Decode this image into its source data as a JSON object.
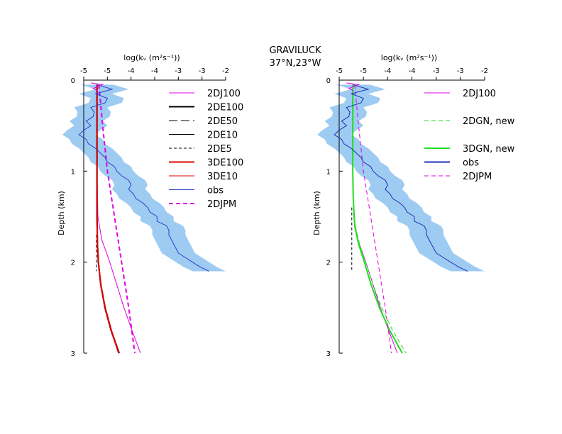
{
  "title_line1": "GRAVILUCK",
  "title_line2": "37°N,23°W",
  "chart_data": [
    {
      "type": "line",
      "panel": "left",
      "xlabel": "log(kᵥ (m²s⁻¹))",
      "ylabel": "Depth (km)",
      "xlim": [
        -5.0,
        -2.0
      ],
      "ylim": [
        3,
        0
      ],
      "xticks": [
        -5,
        -4.5,
        -4,
        -3.5,
        -3,
        -2.5,
        -2
      ],
      "xtick_labels": [
        "-5",
        "-5",
        "-4",
        "-4",
        "-3",
        "-3",
        "-2"
      ],
      "yticks": [
        0,
        1,
        2,
        3
      ],
      "ytick_labels": [
        "0",
        "1",
        "2",
        "3"
      ],
      "legend": [
        {
          "label": "2DJ100",
          "color": "#e000e0",
          "dash": "solid",
          "width": 1
        },
        {
          "label": "2DE100",
          "color": "#000000",
          "dash": "solid",
          "width": 2
        },
        {
          "label": "2DE50",
          "color": "#000000",
          "dash": "long-dash",
          "width": 1
        },
        {
          "label": "2DE10",
          "color": "#000000",
          "dash": "solid",
          "width": 1
        },
        {
          "label": "2DE5",
          "color": "#000000",
          "dash": "short-dash",
          "width": 1
        },
        {
          "label": "3DE100",
          "color": "#dd0000",
          "dash": "solid",
          "width": 2
        },
        {
          "label": "3DE10",
          "color": "#dd0000",
          "dash": "solid",
          "width": 1
        },
        {
          "label": "obs",
          "color": "#2a3ecc",
          "dash": "solid",
          "width": 1
        },
        {
          "label": "2DJPM",
          "color": "#e000e0",
          "dash": "dash",
          "width": 2
        }
      ],
      "obs_profile": {
        "depth": [
          0.05,
          0.1,
          0.15,
          0.2,
          0.25,
          0.3,
          0.35,
          0.4,
          0.45,
          0.5,
          0.55,
          0.6,
          0.65,
          0.7,
          0.75,
          0.8,
          0.85,
          0.9,
          0.95,
          1.0,
          1.05,
          1.1,
          1.15,
          1.2,
          1.25,
          1.3,
          1.35,
          1.4,
          1.45,
          1.5,
          1.55,
          1.6,
          1.65,
          1.7,
          1.75,
          1.8,
          1.85,
          1.9,
          1.95,
          2.0,
          2.05,
          2.1
        ],
        "value": [
          -4.72,
          -4.4,
          -4.75,
          -4.5,
          -4.55,
          -4.85,
          -4.78,
          -4.8,
          -4.95,
          -4.85,
          -5.0,
          -5.1,
          -4.95,
          -4.9,
          -4.75,
          -4.65,
          -4.55,
          -4.5,
          -4.35,
          -4.3,
          -4.2,
          -4.05,
          -4.0,
          -4.05,
          -3.95,
          -3.9,
          -3.75,
          -3.65,
          -3.6,
          -3.45,
          -3.45,
          -3.25,
          -3.2,
          -3.2,
          -3.15,
          -3.1,
          -3.05,
          -3.0,
          -2.85,
          -2.7,
          -2.55,
          -2.35
        ],
        "band_halfwidth": 0.35
      },
      "series": [
        {
          "name": "2DJ100",
          "depth": [
            0.05,
            0.5,
            1.0,
            1.5,
            1.75,
            2.0,
            2.25,
            2.5,
            2.75,
            3.0
          ],
          "value": [
            -4.72,
            -4.72,
            -4.72,
            -4.7,
            -4.62,
            -4.45,
            -4.3,
            -4.15,
            -3.98,
            -3.8
          ]
        },
        {
          "name": "2DE100",
          "depth": [
            0.05,
            0.5,
            1.0,
            1.5,
            1.8,
            2.0,
            2.25,
            2.5,
            2.75,
            3.0
          ],
          "value": [
            -4.72,
            -4.72,
            -4.72,
            -4.72,
            -4.71,
            -4.69,
            -4.64,
            -4.55,
            -4.42,
            -4.25
          ]
        },
        {
          "name": "2DE50",
          "depth": [
            0.05,
            0.5,
            1.0,
            1.5,
            1.8,
            2.0,
            2.25,
            2.5,
            2.75,
            3.0
          ],
          "value": [
            -4.72,
            -4.72,
            -4.72,
            -4.72,
            -4.71,
            -4.69,
            -4.63,
            -4.54,
            -4.41,
            -4.25
          ]
        },
        {
          "name": "2DE10",
          "depth": [
            0.05,
            0.5,
            1.0,
            1.5,
            1.8,
            2.0,
            2.25,
            2.5,
            2.75,
            3.0
          ],
          "value": [
            -4.72,
            -4.72,
            -4.72,
            -4.72,
            -4.71,
            -4.7,
            -4.64,
            -4.56,
            -4.43,
            -4.26
          ]
        },
        {
          "name": "2DE5",
          "depth": [
            1.7,
            1.8,
            1.9,
            2.0,
            2.1
          ],
          "value": [
            -4.73,
            -4.73,
            -4.73,
            -4.73,
            -4.73
          ]
        },
        {
          "name": "3DE100",
          "depth": [
            0.05,
            0.5,
            1.0,
            1.5,
            1.8,
            2.0,
            2.25,
            2.5,
            2.75,
            3.0
          ],
          "value": [
            -4.72,
            -4.72,
            -4.72,
            -4.72,
            -4.71,
            -4.69,
            -4.64,
            -4.55,
            -4.42,
            -4.26
          ]
        },
        {
          "name": "3DE10",
          "depth": [
            0.05,
            0.5,
            1.0,
            1.5,
            1.8,
            2.0,
            2.25,
            2.5,
            2.75,
            3.0
          ],
          "value": [
            -4.72,
            -4.72,
            -4.72,
            -4.72,
            -4.71,
            -4.69,
            -4.63,
            -4.54,
            -4.41,
            -4.25
          ]
        },
        {
          "name": "2DJPM",
          "depth": [
            0.05,
            0.5,
            1.0,
            1.5,
            2.0,
            2.5,
            3.0
          ],
          "value": [
            -4.68,
            -4.6,
            -4.5,
            -4.35,
            -4.2,
            -4.05,
            -3.92
          ]
        }
      ]
    },
    {
      "type": "line",
      "panel": "right",
      "xlabel": "log(kᵥ (m²s⁻¹))",
      "ylabel": "Depth (km)",
      "xlim": [
        -5.0,
        -2.0
      ],
      "ylim": [
        3,
        0
      ],
      "xticks": [
        -5,
        -4.5,
        -4,
        -3.5,
        -3,
        -2.5,
        -2
      ],
      "xtick_labels": [
        "-5",
        "-5",
        "-4",
        "-4",
        "-3",
        "-3",
        "-2"
      ],
      "yticks": [
        0,
        1,
        2,
        3
      ],
      "ytick_labels": [
        "0",
        "1",
        "2",
        "3"
      ],
      "legend": [
        {
          "label": "2DJ100",
          "color": "#e000e0",
          "dash": "solid",
          "width": 1
        },
        {
          "label": "",
          "color": "none",
          "dash": "solid",
          "width": 0
        },
        {
          "label": "2DGN, new",
          "color": "#22dd22",
          "dash": "dash",
          "width": 1
        },
        {
          "label": "",
          "color": "none",
          "dash": "solid",
          "width": 0
        },
        {
          "label": "3DGN, new",
          "color": "#22dd22",
          "dash": "solid",
          "width": 2
        },
        {
          "label": "obs",
          "color": "#1b2fb8",
          "dash": "solid",
          "width": 2
        },
        {
          "label": "2DJPM",
          "color": "#e000e0",
          "dash": "dash",
          "width": 1
        }
      ],
      "obs_profile": {
        "depth": [
          0.05,
          0.1,
          0.15,
          0.2,
          0.25,
          0.3,
          0.35,
          0.4,
          0.45,
          0.5,
          0.55,
          0.6,
          0.65,
          0.7,
          0.75,
          0.8,
          0.85,
          0.9,
          0.95,
          1.0,
          1.05,
          1.1,
          1.15,
          1.2,
          1.25,
          1.3,
          1.35,
          1.4,
          1.45,
          1.5,
          1.55,
          1.6,
          1.65,
          1.7,
          1.75,
          1.8,
          1.85,
          1.9,
          1.95,
          2.0,
          2.05,
          2.1
        ],
        "value": [
          -4.72,
          -4.4,
          -4.75,
          -4.5,
          -4.55,
          -4.85,
          -4.78,
          -4.8,
          -4.95,
          -4.85,
          -5.0,
          -5.1,
          -4.95,
          -4.9,
          -4.75,
          -4.65,
          -4.55,
          -4.5,
          -4.35,
          -4.3,
          -4.2,
          -4.05,
          -4.0,
          -4.05,
          -3.95,
          -3.9,
          -3.75,
          -3.65,
          -3.6,
          -3.45,
          -3.45,
          -3.25,
          -3.2,
          -3.2,
          -3.15,
          -3.1,
          -3.05,
          -3.0,
          -2.85,
          -2.7,
          -2.55,
          -2.35
        ],
        "band_halfwidth": 0.35
      },
      "series": [
        {
          "name": "2DJ100",
          "depth": [
            0.05,
            0.5,
            1.0,
            1.5,
            1.75,
            2.0,
            2.25,
            2.5,
            2.75,
            3.0
          ],
          "value": [
            -4.72,
            -4.72,
            -4.72,
            -4.7,
            -4.62,
            -4.45,
            -4.3,
            -4.15,
            -3.98,
            -3.8
          ]
        },
        {
          "name": "2DGN, new",
          "depth": [
            0.05,
            0.5,
            1.0,
            1.3,
            1.6,
            1.8,
            2.0,
            2.25,
            2.5,
            2.75,
            3.0
          ],
          "value": [
            -4.72,
            -4.72,
            -4.72,
            -4.71,
            -4.67,
            -4.58,
            -4.45,
            -4.3,
            -4.12,
            -3.9,
            -3.62
          ]
        },
        {
          "name": "3DGN, new",
          "depth": [
            0.05,
            0.5,
            1.0,
            1.3,
            1.6,
            1.8,
            2.0,
            2.25,
            2.5,
            2.75,
            3.0
          ],
          "value": [
            -4.72,
            -4.72,
            -4.72,
            -4.71,
            -4.68,
            -4.6,
            -4.48,
            -4.34,
            -4.17,
            -3.96,
            -3.7
          ]
        },
        {
          "name": "2DE5",
          "depth": [
            1.4,
            1.6,
            1.8,
            2.0,
            2.1
          ],
          "value": [
            -4.74,
            -4.74,
            -4.74,
            -4.74,
            -4.74
          ]
        },
        {
          "name": "2DJPM",
          "depth": [
            0.05,
            0.5,
            1.0,
            1.5,
            2.0,
            2.5,
            3.0
          ],
          "value": [
            -4.68,
            -4.6,
            -4.5,
            -4.35,
            -4.2,
            -4.05,
            -3.92
          ]
        }
      ]
    }
  ]
}
